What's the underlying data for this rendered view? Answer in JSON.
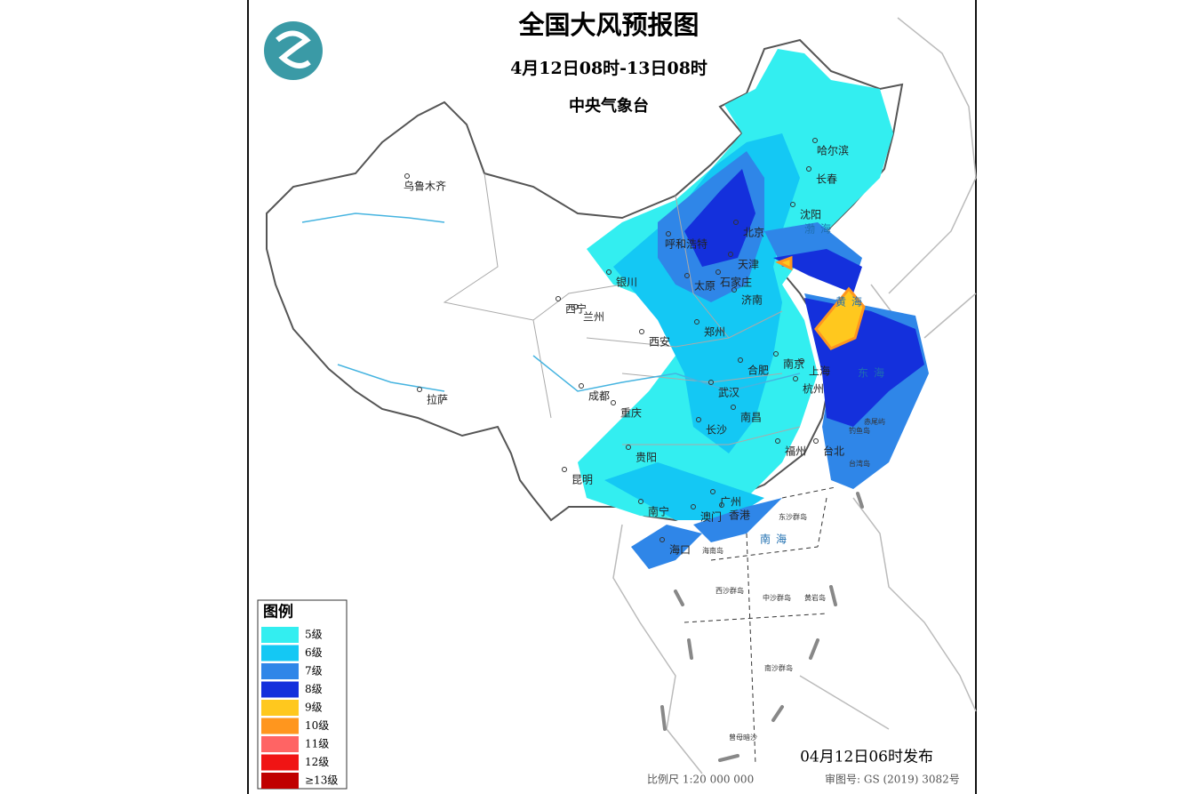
{
  "header": {
    "title": "全国大风预报图",
    "period": "4月12日08时-13日08时",
    "issuer": "中央气象台"
  },
  "legend": {
    "title": "图例",
    "items": [
      {
        "label": "5级",
        "color": "#33eef0"
      },
      {
        "label": "6级",
        "color": "#14c8f4"
      },
      {
        "label": "7级",
        "color": "#2f86e8"
      },
      {
        "label": "8级",
        "color": "#1430dc"
      },
      {
        "label": "9级",
        "color": "#ffc81e"
      },
      {
        "label": "10级",
        "color": "#ff961e"
      },
      {
        "label": "11级",
        "color": "#ff6464"
      },
      {
        "label": "12级",
        "color": "#f01414"
      },
      {
        "label": "≥13级",
        "color": "#c00000"
      }
    ]
  },
  "cities": [
    "乌鲁木齐",
    "哈尔滨",
    "长春",
    "沈阳",
    "北京",
    "呼和浩特",
    "天津",
    "银川",
    "太原",
    "石家庄",
    "济南",
    "西宁",
    "兰州",
    "郑州",
    "西安",
    "合肥",
    "南京",
    "上海",
    "杭州",
    "武汉",
    "成都",
    "拉萨",
    "重庆",
    "南昌",
    "长沙",
    "福州",
    "台北",
    "贵阳",
    "昆明",
    "广州",
    "澳门",
    "香港",
    "南宁",
    "海口"
  ],
  "seas": [
    "渤海",
    "黄海",
    "东海",
    "南海"
  ],
  "islands": [
    "东沙群岛",
    "西沙群岛",
    "中沙群岛",
    "黄岩岛",
    "南沙群岛",
    "曾母暗沙",
    "钓鱼岛",
    "赤尾屿",
    "台湾岛",
    "海南岛"
  ],
  "footer": {
    "published": "04月12日06时发布",
    "scale": "比例尺 1:20 000 000",
    "approval": "审图号: GS (2019) 3082号"
  }
}
